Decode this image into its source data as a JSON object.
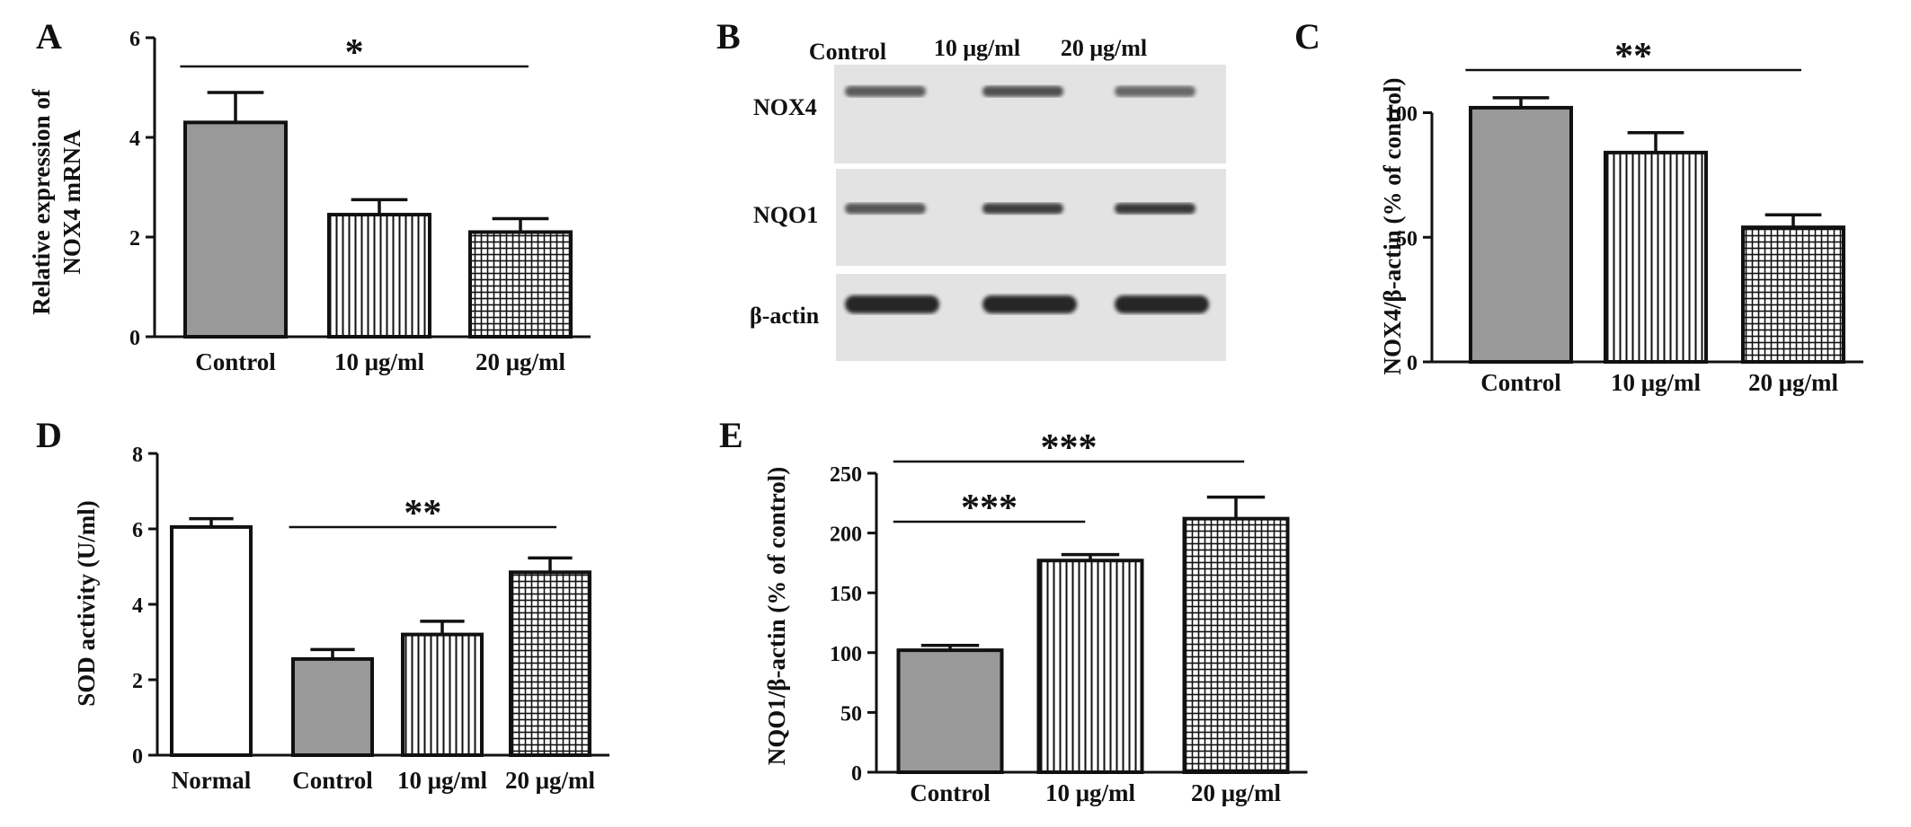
{
  "colors": {
    "gray_fill": "#999999",
    "outline": "#111111",
    "white_fill": "#ffffff",
    "blot_bg": "#e3e3e3",
    "band": "#1a1a1a"
  },
  "chart_data": [
    {
      "panel": "A",
      "type": "bar",
      "ylabel": [
        "Relative expression of",
        "NOX4 mRNA"
      ],
      "categories": [
        "Control",
        "10 μg/ml",
        "20 μg/ml"
      ],
      "values": [
        4.3,
        2.45,
        2.1
      ],
      "errors": [
        0.6,
        0.3,
        0.27
      ],
      "patterns": [
        "gray",
        "vlines",
        "grid"
      ],
      "ylim": [
        0,
        6
      ],
      "yticks": [
        0,
        2,
        4,
        6
      ],
      "significance": [
        {
          "label": "*",
          "from": 0,
          "to": 2
        }
      ]
    },
    {
      "panel": "C",
      "type": "bar",
      "ylabel": [
        "NOX4/β-actin (% of control)"
      ],
      "categories": [
        "Control",
        "10 μg/ml",
        "20 μg/ml"
      ],
      "values": [
        102,
        84,
        54
      ],
      "errors": [
        4,
        8,
        5
      ],
      "patterns": [
        "gray",
        "vlines",
        "grid"
      ],
      "ylim": [
        0,
        120
      ],
      "yticks": [
        0,
        50,
        100
      ],
      "significance": [
        {
          "label": "**",
          "from": 0,
          "to": 2
        }
      ]
    },
    {
      "panel": "D",
      "type": "bar",
      "ylabel": [
        "SOD activity (U/ml)"
      ],
      "categories": [
        "Normal",
        "Control",
        "10 μg/ml",
        "20 μg/ml"
      ],
      "values": [
        6.05,
        2.55,
        3.2,
        4.85
      ],
      "errors": [
        0.22,
        0.25,
        0.35,
        0.38
      ],
      "patterns": [
        "white",
        "gray",
        "vlines",
        "grid"
      ],
      "ylim": [
        0,
        8
      ],
      "yticks": [
        0,
        2,
        4,
        6,
        8
      ],
      "significance": [
        {
          "label": "**",
          "from": 1,
          "to": 3
        }
      ]
    },
    {
      "panel": "E",
      "type": "bar",
      "ylabel": [
        "NQO1/β-actin (% of control)"
      ],
      "categories": [
        "Control",
        "10 μg/ml",
        "20 μg/ml"
      ],
      "values": [
        102,
        177,
        212
      ],
      "errors": [
        4,
        5,
        18
      ],
      "patterns": [
        "gray",
        "vlines",
        "grid"
      ],
      "ylim": [
        0,
        250
      ],
      "yticks": [
        0,
        50,
        100,
        150,
        200,
        250
      ],
      "significance": [
        {
          "label": "***",
          "from": 0,
          "to": 2
        },
        {
          "label": "***",
          "from": 0,
          "to": 1
        }
      ]
    }
  ],
  "blot": {
    "panel": "B",
    "columns": [
      "Control",
      "10 μg/ml",
      "20 μg/ml"
    ],
    "rows": [
      {
        "label": "NOX4",
        "intensities": [
          0.55,
          0.65,
          0.45
        ]
      },
      {
        "label": "NQO1",
        "intensities": [
          0.6,
          0.8,
          0.85
        ]
      },
      {
        "label": "β-actin",
        "intensities": [
          1.0,
          1.0,
          1.0
        ]
      }
    ]
  }
}
